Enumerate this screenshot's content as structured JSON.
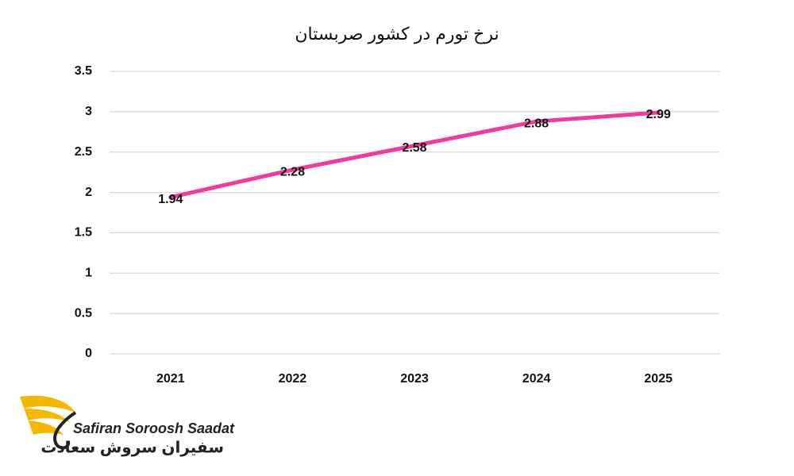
{
  "chart_data": {
    "type": "line",
    "title": "نرخ تورم در کشور صربستان",
    "categories": [
      "2021",
      "2022",
      "2023",
      "2024",
      "2025"
    ],
    "series": [
      {
        "name": "نرخ تورم",
        "color": "#f2399c",
        "values": [
          1.94,
          2.28,
          2.58,
          2.88,
          2.99
        ]
      }
    ],
    "ylim": [
      0,
      3.5
    ],
    "yticks": [
      0,
      0.5,
      1,
      1.5,
      2,
      2.5,
      3,
      3.5
    ],
    "grid": true,
    "data_labels": true
  },
  "logo": {
    "name_en": "Safiran Soroosh Saadat",
    "name_fa": "سفیران سروش سعادت"
  }
}
